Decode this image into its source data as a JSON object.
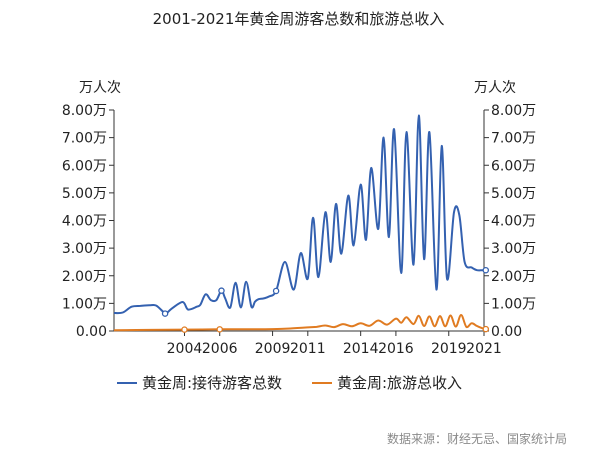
{
  "chart_data": {
    "type": "line",
    "title": "2001-2021年黄金周游客总数和旅游总收入",
    "left_unit_label": "万人次",
    "right_unit_label": "万人次",
    "ylim": [
      0,
      80000
    ],
    "y_ticks": [
      {
        "value": 0,
        "label": "0.00"
      },
      {
        "value": 10000,
        "label": "1.00万"
      },
      {
        "value": 20000,
        "label": "2.00万"
      },
      {
        "value": 30000,
        "label": "3.00万"
      },
      {
        "value": 40000,
        "label": "4.00万"
      },
      {
        "value": 50000,
        "label": "5.00万"
      },
      {
        "value": 60000,
        "label": "6.00万"
      },
      {
        "value": 70000,
        "label": "7.00万"
      },
      {
        "value": 80000,
        "label": "8.00万"
      }
    ],
    "xlim": [
      2000,
      2021
    ],
    "x_ticks": [
      2004,
      2006,
      2009,
      2011,
      2014,
      2016,
      2019,
      2021
    ],
    "series": [
      {
        "name": "黄金周:接待游客总数",
        "color": "#3461b0",
        "x": [
          2000.0,
          2000.5,
          2001.0,
          2001.5,
          2002.0,
          2002.4,
          2002.9,
          2003.0,
          2003.3,
          2003.9,
          2004.2,
          2004.7,
          2004.9,
          2005.2,
          2005.5,
          2005.8,
          2006.1,
          2006.3,
          2006.6,
          2006.9,
          2007.2,
          2007.5,
          2007.8,
          2008.0,
          2008.2,
          2008.5,
          2008.8,
          2009.2,
          2009.7,
          2010.2,
          2010.6,
          2011.0,
          2011.3,
          2011.6,
          2012.0,
          2012.3,
          2012.6,
          2012.9,
          2013.3,
          2013.6,
          2014.0,
          2014.3,
          2014.6,
          2015.0,
          2015.3,
          2015.6,
          2015.9,
          2016.3,
          2016.6,
          2017.0,
          2017.3,
          2017.6,
          2017.9,
          2018.3,
          2018.6,
          2018.9,
          2019.3,
          2019.6,
          2019.9,
          2020.3,
          2020.6,
          2020.9,
          2021.1
        ],
        "values": [
          6500,
          6700,
          8800,
          9100,
          9300,
          9200,
          6300,
          6500,
          8200,
          10500,
          7800,
          8800,
          9500,
          13300,
          11200,
          11100,
          14600,
          12000,
          8500,
          17500,
          8500,
          17800,
          8800,
          10600,
          11500,
          11800,
          12500,
          14500,
          25000,
          15000,
          28200,
          19000,
          41000,
          19500,
          43000,
          25000,
          46000,
          28000,
          49000,
          31000,
          53000,
          33000,
          59000,
          37000,
          70000,
          34000,
          73000,
          21000,
          72000,
          24000,
          78000,
          26000,
          72000,
          15000,
          67000,
          19000,
          43000,
          42000,
          25000,
          23000,
          22000,
          22000,
          22000
        ]
      },
      {
        "name": "黄金周:旅游总收入",
        "color": "#e07b21",
        "x": [
          2000.0,
          2002.0,
          2004.0,
          2006.0,
          2008.0,
          2009.0,
          2010.0,
          2011.0,
          2011.5,
          2012.0,
          2012.5,
          2013.0,
          2013.5,
          2014.0,
          2014.5,
          2015.0,
          2015.5,
          2016.0,
          2016.3,
          2016.6,
          2017.0,
          2017.3,
          2017.6,
          2017.9,
          2018.2,
          2018.5,
          2018.8,
          2019.1,
          2019.4,
          2019.7,
          2020.0,
          2020.3,
          2020.6,
          2020.9,
          2021.1
        ],
        "values": [
          300,
          400,
          500,
          600,
          650,
          700,
          900,
          1300,
          1500,
          2000,
          1400,
          2500,
          1700,
          2800,
          1900,
          3800,
          2300,
          4500,
          3000,
          5000,
          2500,
          5500,
          1800,
          5300,
          1700,
          5400,
          1700,
          5600,
          1600,
          5800,
          1500,
          2800,
          1800,
          1000,
          700
        ]
      }
    ],
    "legend": {
      "position": "bottom"
    }
  },
  "source_note": "数据来源：财经无忌、国家统计局"
}
